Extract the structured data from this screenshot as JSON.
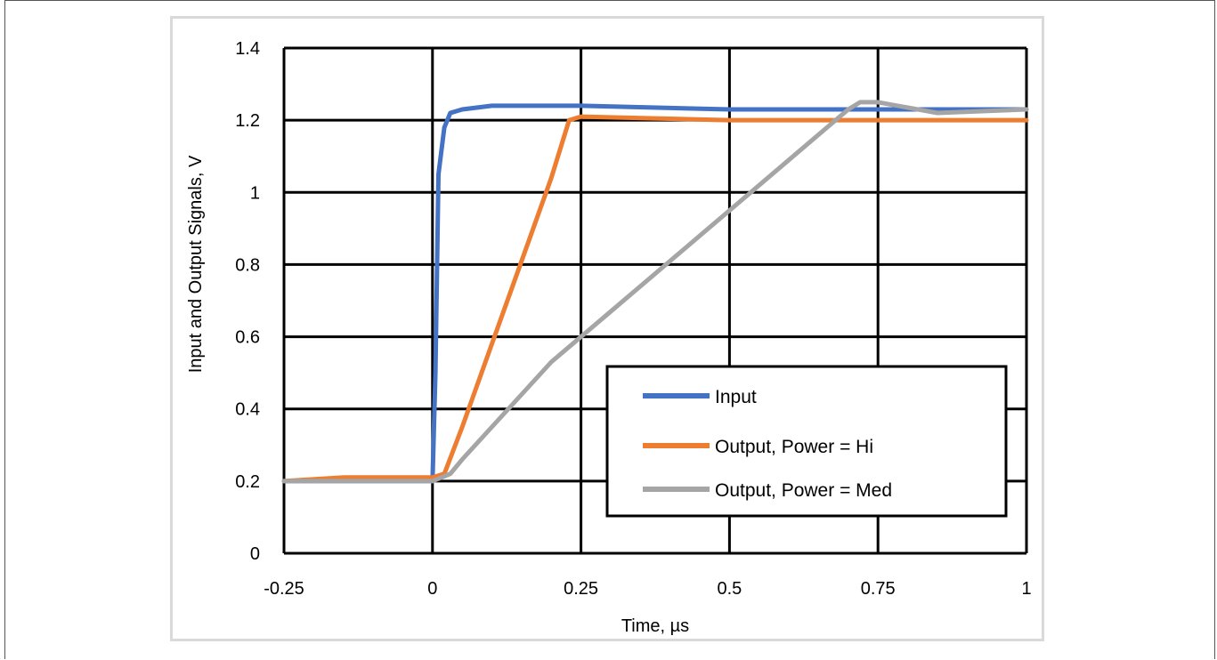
{
  "chart_data": {
    "type": "line",
    "title": "",
    "xlabel": "Time, µs",
    "ylabel": "Input and Output Signals, V",
    "xlim": [
      -0.25,
      1
    ],
    "ylim": [
      0,
      1.4
    ],
    "x_ticks": [
      -0.25,
      0,
      0.25,
      0.5,
      0.75,
      1
    ],
    "x_tick_labels": [
      "-0.25",
      "0",
      "0.25",
      "0.5",
      "0.75",
      "1"
    ],
    "y_ticks": [
      0,
      0.2,
      0.4,
      0.6,
      0.8,
      1,
      1.2,
      1.4
    ],
    "y_tick_labels": [
      "0",
      "0.2",
      "0.4",
      "0.6",
      "0.8",
      "1",
      "1.2",
      "1.4"
    ],
    "grid": true,
    "legend_position": "bottom-right",
    "series": [
      {
        "name": "Input",
        "color": "#4472c4",
        "x": [
          -0.25,
          -0.15,
          -0.05,
          0,
          0.005,
          0.01,
          0.02,
          0.03,
          0.05,
          0.1,
          0.25,
          0.5,
          0.75,
          1
        ],
        "y": [
          0.2,
          0.2,
          0.2,
          0.2,
          0.5,
          1.05,
          1.18,
          1.22,
          1.23,
          1.24,
          1.24,
          1.23,
          1.23,
          1.23
        ]
      },
      {
        "name": "Output, Power = Hi",
        "color": "#ed7d31",
        "x": [
          -0.25,
          -0.15,
          0,
          0.02,
          0.05,
          0.1,
          0.15,
          0.2,
          0.23,
          0.25,
          0.5,
          0.75,
          1
        ],
        "y": [
          0.2,
          0.21,
          0.21,
          0.22,
          0.35,
          0.58,
          0.81,
          1.04,
          1.2,
          1.21,
          1.2,
          1.2,
          1.2
        ]
      },
      {
        "name": "Output, Power = Med",
        "color": "#a5a5a5",
        "x": [
          -0.25,
          -0.1,
          0,
          0.03,
          0.05,
          0.1,
          0.2,
          0.3,
          0.4,
          0.5,
          0.6,
          0.7,
          0.72,
          0.75,
          0.85,
          1
        ],
        "y": [
          0.2,
          0.2,
          0.2,
          0.22,
          0.26,
          0.35,
          0.53,
          0.67,
          0.81,
          0.95,
          1.09,
          1.23,
          1.25,
          1.25,
          1.22,
          1.23
        ]
      }
    ]
  }
}
